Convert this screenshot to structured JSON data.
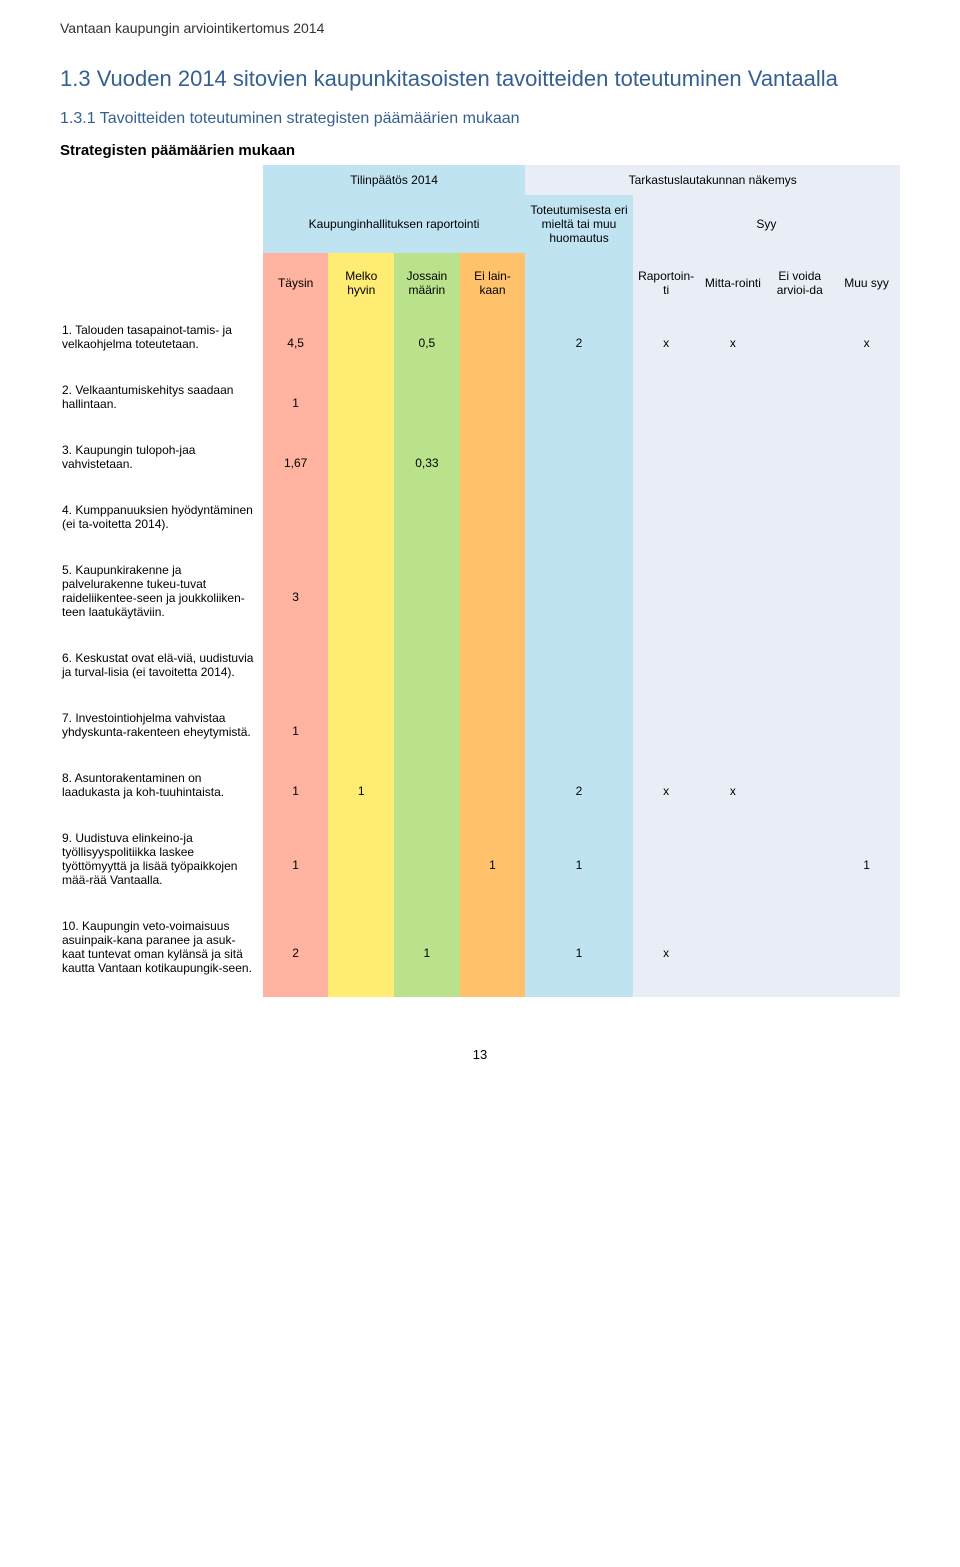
{
  "header": "Vantaan kaupungin arviointikertomus 2014",
  "title_main": "1.3 Vuoden 2014 sitovien kaupunkitasoisten tavoitteiden toteutuminen Vantaalla",
  "title_sub": "1.3.1 Tavoitteiden toteutuminen strategisten päämäärien mukaan",
  "section_head": "Strategisten päämäärien mukaan",
  "page_number": "13",
  "colors": {
    "red": "#ffb3a0",
    "yellow": "#ffec73",
    "green": "#b9e28b",
    "orange": "#ffc26b",
    "ltblue": "#bfe3f0",
    "tablue": "#e9eef6",
    "white": "#ffffff"
  },
  "top_headers": {
    "tp": "Tilinpäätös 2014",
    "ta": "Tarkastuslautakunnan näkemys",
    "khr": "Kaupunginhallituksen raportointi",
    "tot": "Toteutumisesta eri mieltä tai muu huomautus",
    "syy": "Syy"
  },
  "sub_headers": {
    "t": "Täysin",
    "mh": "Melko hyvin",
    "jm": "Jossain määrin",
    "el": "Ei lain-kaan",
    "rap": "Raportoin-ti",
    "mit": "Mitta-rointi",
    "eva": "Ei voida arvioi-da",
    "muu": "Muu syy"
  },
  "rows": [
    {
      "label": "1. Talouden tasapainot-tamis- ja velkaohjelma toteutetaan.",
      "c1": "4,5",
      "c2": "",
      "c3": "0,5",
      "c4": "",
      "rem": "2",
      "ra": "x",
      "mi": "x",
      "ev": "",
      "mu": "x",
      "c1c": "red",
      "c2c": "yellow",
      "c3c": "green",
      "c4c": "orange",
      "remc": "ltblue",
      "rac": "tablue",
      "mic": "tablue",
      "evc": "tablue",
      "muc": "tablue"
    },
    {
      "label": "2. Velkaantumiskehitys saadaan hallintaan.",
      "c1": "1",
      "c2": "",
      "c3": "",
      "c4": "",
      "rem": "",
      "ra": "",
      "mi": "",
      "ev": "",
      "mu": "",
      "c1c": "red",
      "c2c": "yellow",
      "c3c": "green",
      "c4c": "orange",
      "remc": "ltblue",
      "rac": "tablue",
      "mic": "tablue",
      "evc": "tablue",
      "muc": "tablue"
    },
    {
      "label": "3. Kaupungin tulopoh-jaa vahvistetaan.",
      "c1": "1,67",
      "c2": "",
      "c3": "0,33",
      "c4": "",
      "rem": "",
      "ra": "",
      "mi": "",
      "ev": "",
      "mu": "",
      "c1c": "red",
      "c2c": "yellow",
      "c3c": "green",
      "c4c": "orange",
      "remc": "ltblue",
      "rac": "tablue",
      "mic": "tablue",
      "evc": "tablue",
      "muc": "tablue"
    },
    {
      "label": "4. Kumppanuuksien hyödyntäminen (ei ta-voitetta 2014).",
      "c1": "",
      "c2": "",
      "c3": "",
      "c4": "",
      "rem": "",
      "ra": "",
      "mi": "",
      "ev": "",
      "mu": "",
      "c1c": "red",
      "c2c": "yellow",
      "c3c": "green",
      "c4c": "orange",
      "remc": "ltblue",
      "rac": "tablue",
      "mic": "tablue",
      "evc": "tablue",
      "muc": "tablue"
    },
    {
      "label": "5. Kaupunkirakenne ja palvelurakenne tukeu-tuvat raideliikentee-seen ja joukkoliiken-teen laatukäytäviin.",
      "c1": "3",
      "c2": "",
      "c3": "",
      "c4": "",
      "rem": "",
      "ra": "",
      "mi": "",
      "ev": "",
      "mu": "",
      "c1c": "red",
      "c2c": "yellow",
      "c3c": "green",
      "c4c": "orange",
      "remc": "ltblue",
      "rac": "tablue",
      "mic": "tablue",
      "evc": "tablue",
      "muc": "tablue"
    },
    {
      "label": "6. Keskustat ovat elä-viä, uudistuvia ja turval-lisia (ei tavoitetta 2014).",
      "c1": "",
      "c2": "",
      "c3": "",
      "c4": "",
      "rem": "",
      "ra": "",
      "mi": "",
      "ev": "",
      "mu": "",
      "c1c": "red",
      "c2c": "yellow",
      "c3c": "green",
      "c4c": "orange",
      "remc": "ltblue",
      "rac": "tablue",
      "mic": "tablue",
      "evc": "tablue",
      "muc": "tablue"
    },
    {
      "label": "7. Investointiohjelma vahvistaa yhdyskunta-rakenteen eheytymistä.",
      "c1": "1",
      "c2": "",
      "c3": "",
      "c4": "",
      "rem": "",
      "ra": "",
      "mi": "",
      "ev": "",
      "mu": "",
      "c1c": "red",
      "c2c": "yellow",
      "c3c": "green",
      "c4c": "orange",
      "remc": "ltblue",
      "rac": "tablue",
      "mic": "tablue",
      "evc": "tablue",
      "muc": "tablue"
    },
    {
      "label": "8. Asuntorakentaminen on laadukasta ja koh-tuuhintaista.",
      "c1": "1",
      "c2": "1",
      "c3": "",
      "c4": "",
      "rem": "2",
      "ra": "x",
      "mi": "x",
      "ev": "",
      "mu": "",
      "c1c": "red",
      "c2c": "yellow",
      "c3c": "green",
      "c4c": "orange",
      "remc": "ltblue",
      "rac": "tablue",
      "mic": "tablue",
      "evc": "tablue",
      "muc": "tablue"
    },
    {
      "label": "9. Uudistuva elinkeino-ja työllisyyspolitiikka laskee työttömyyttä ja lisää työpaikkojen mää-rää Vantaalla.",
      "c1": "1",
      "c2": "",
      "c3": "",
      "c4": "1",
      "rem": "1",
      "ra": "",
      "mi": "",
      "ev": "",
      "mu": "1",
      "c1c": "red",
      "c2c": "yellow",
      "c3c": "green",
      "c4c": "orange",
      "remc": "ltblue",
      "rac": "tablue",
      "mic": "tablue",
      "evc": "tablue",
      "muc": "tablue"
    },
    {
      "label": "10. Kaupungin veto-voimaisuus asuinpaik-kana paranee ja asuk-kaat tuntevat oman kylänsä ja sitä kautta Vantaan kotikaupungik-seen.",
      "c1": "2",
      "c2": "",
      "c3": "1",
      "c4": "",
      "rem": "1",
      "ra": "x",
      "mi": "",
      "ev": "",
      "mu": "",
      "c1c": "red",
      "c2c": "yellow",
      "c3c": "green",
      "c4c": "orange",
      "remc": "ltblue",
      "rac": "tablue",
      "mic": "tablue",
      "evc": "tablue",
      "muc": "tablue"
    }
  ]
}
